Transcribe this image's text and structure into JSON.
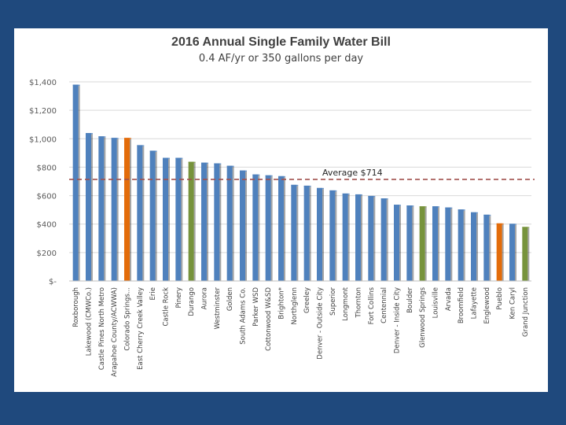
{
  "chart_data": {
    "type": "bar",
    "title": "2016 Annual Single Family Water Bill",
    "subtitle": "0.4 AF/yr or 350 gallons per day",
    "xlabel": "",
    "ylabel": "",
    "ylim": [
      0,
      1400
    ],
    "yticks": [
      0,
      200,
      400,
      600,
      800,
      1000,
      1200,
      1400
    ],
    "ytick_labels": [
      "$-",
      "$200",
      "$400",
      "$600",
      "$800",
      "$1,000",
      "$1,200",
      "$1,400"
    ],
    "grid": true,
    "categories": [
      "Roxborough",
      "Lakewood (CMWCo.)",
      "Castle Pines North Metro",
      "Arapahoe County/ACWWA)",
      "Colorado Springs...",
      "East Cherry Creek Valley",
      "Erie",
      "Castle Rock",
      "Pinery",
      "Durango",
      "Aurora",
      "Westminster",
      "Golden",
      "South Adams Co.",
      "Parker WSD",
      "Cottonwood W&SD",
      "Brighton*",
      "Northglenn",
      "Greeley",
      "Denver - Outside City",
      "Superior",
      "Longmont",
      "Thornton",
      "Fort Collins",
      "Centennial",
      "Denver - Inside City",
      "Boulder",
      "Glenwood Springs",
      "Louisville",
      "Arvada",
      "Broomfield",
      "Lafayette",
      "Englewood",
      "Pueblo",
      "Ken Caryl",
      "Grand Junction"
    ],
    "values": [
      1380,
      1040,
      1017,
      1006,
      1006,
      955,
      916,
      866,
      866,
      838,
      832,
      827,
      810,
      777,
      749,
      743,
      737,
      676,
      670,
      654,
      637,
      615,
      609,
      598,
      581,
      536,
      531,
      525,
      525,
      517,
      503,
      483,
      466,
      405,
      402,
      380
    ],
    "bar_colors": [
      "blue",
      "blue",
      "blue",
      "blue",
      "orange",
      "blue",
      "blue",
      "blue",
      "blue",
      "green",
      "blue",
      "blue",
      "blue",
      "blue",
      "blue",
      "blue",
      "blue",
      "blue",
      "blue",
      "blue",
      "blue",
      "blue",
      "blue",
      "blue",
      "blue",
      "blue",
      "blue",
      "green",
      "blue",
      "blue",
      "blue",
      "blue",
      "blue",
      "orange",
      "blue",
      "green"
    ],
    "palette": {
      "blue": "#4f81bd",
      "orange": "#e36c0a",
      "green": "#77933c"
    },
    "average": {
      "value": 714,
      "label": "Average $714",
      "color": "#a0504d"
    }
  },
  "colors": {
    "background": "#1f497d",
    "panel": "#ffffff",
    "gridline": "#d9d9d9"
  }
}
